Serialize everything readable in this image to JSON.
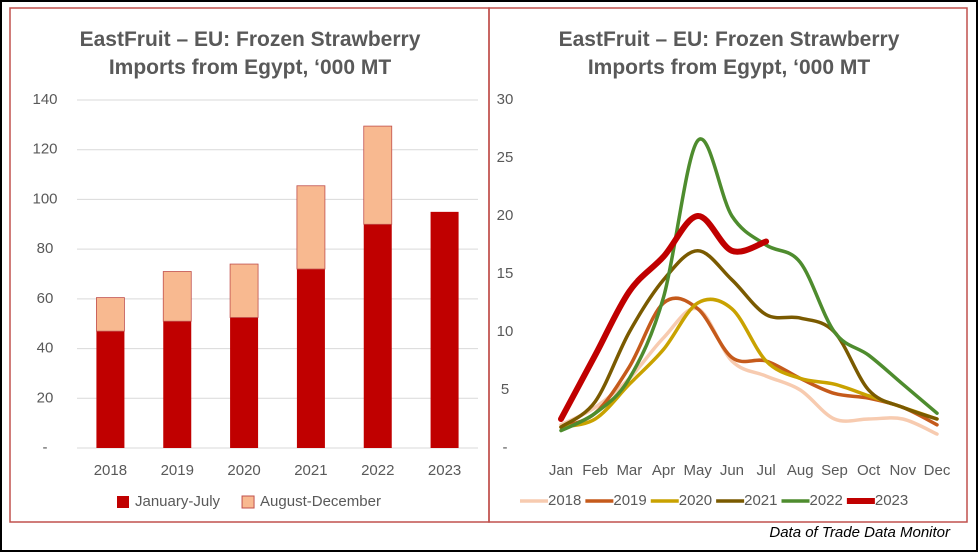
{
  "chart_data": [
    {
      "type": "bar",
      "stacked": true,
      "title": "EastFruit – EU: Frozen Strawberry Imports from Egypt, ‘000 MT",
      "categories": [
        "2018",
        "2019",
        "2020",
        "2021",
        "2022",
        "2023"
      ],
      "series": [
        {
          "name": "January-July",
          "color": "#c00000",
          "values": [
            47,
            51,
            52.5,
            72,
            90,
            95
          ]
        },
        {
          "name": "August-December",
          "color": "#f8b990",
          "values": [
            13.5,
            20,
            21.5,
            33.5,
            39.5,
            null
          ]
        }
      ],
      "ylim": [
        0,
        140
      ],
      "yticks": [
        {
          "value": 0,
          "label": "-"
        },
        20,
        40,
        60,
        80,
        100,
        120,
        140
      ],
      "grid": true,
      "legend": "bottom"
    },
    {
      "type": "line",
      "smooth": true,
      "title": "EastFruit – EU: Frozen Strawberry Imports from Egypt, ‘000 MT",
      "categories": [
        "Jan",
        "Feb",
        "Mar",
        "Apr",
        "May",
        "Jun",
        "Jul",
        "Aug",
        "Sep",
        "Oct",
        "Nov",
        "Dec"
      ],
      "series": [
        {
          "name": "2018",
          "color": "#f7cbb0",
          "values": [
            2,
            3.5,
            6,
            9.5,
            12,
            7.5,
            6.2,
            5,
            2.5,
            2.5,
            2.5,
            1.2
          ]
        },
        {
          "name": "2019",
          "color": "#c55a1b",
          "values": [
            1.8,
            3,
            7,
            12.5,
            12,
            7.8,
            7.5,
            6,
            4.7,
            4.3,
            3.5,
            2
          ]
        },
        {
          "name": "2020",
          "color": "#c9a200",
          "values": [
            1.8,
            2.5,
            5.5,
            8.5,
            12.5,
            12,
            7.5,
            6,
            5.5,
            4.5,
            3.5,
            2.5
          ]
        },
        {
          "name": "2021",
          "color": "#7a5a00",
          "values": [
            1.8,
            4,
            10,
            14.5,
            17,
            14.5,
            11.5,
            11.2,
            10,
            5,
            3.5,
            2.5
          ]
        },
        {
          "name": "2022",
          "color": "#4e8c2e",
          "values": [
            1.5,
            3,
            6,
            13,
            26.5,
            20,
            17.5,
            16,
            10,
            8,
            5.5,
            3
          ]
        },
        {
          "name": "2023",
          "color": "#c00000",
          "values": [
            2.5,
            8,
            13.5,
            16.5,
            20,
            17,
            17.8,
            null,
            null,
            null,
            null,
            null
          ]
        }
      ],
      "ylim": [
        0,
        30
      ],
      "yticks": [
        {
          "value": 0,
          "label": "-"
        },
        5,
        10,
        15,
        20,
        25,
        30
      ],
      "grid": false,
      "legend": "bottom"
    }
  ],
  "source": "Data of Trade Data Monitor"
}
